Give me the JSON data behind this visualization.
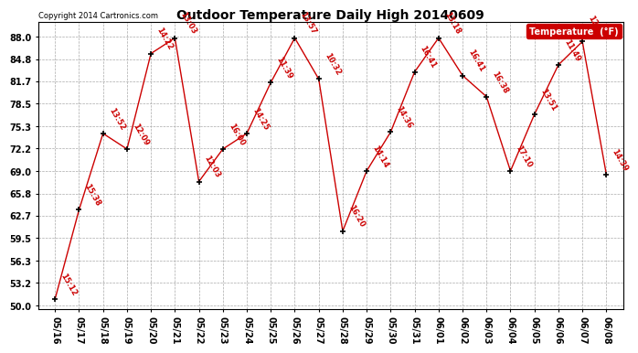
{
  "title": "Outdoor Temperature Daily High 20140609",
  "copyright": "Copyright 2014 Cartronics.com",
  "legend_label": "Temperature  (°F)",
  "background_color": "#ffffff",
  "plot_bg_color": "#ffffff",
  "line_color": "#cc0000",
  "marker_color": "#000000",
  "label_color": "#cc0000",
  "yticks": [
    50.0,
    53.2,
    56.3,
    59.5,
    62.7,
    65.8,
    69.0,
    72.2,
    75.3,
    78.5,
    81.7,
    84.8,
    88.0
  ],
  "ylim": [
    49.5,
    90.0
  ],
  "dates": [
    "05/16",
    "05/17",
    "05/18",
    "05/19",
    "05/20",
    "05/21",
    "05/22",
    "05/23",
    "05/24",
    "05/25",
    "05/26",
    "05/27",
    "05/28",
    "05/29",
    "05/30",
    "05/31",
    "06/01",
    "06/02",
    "06/03",
    "06/04",
    "06/05",
    "06/06",
    "06/07",
    "06/08"
  ],
  "temps": [
    50.9,
    63.5,
    74.3,
    72.1,
    85.6,
    87.8,
    67.5,
    72.1,
    74.3,
    81.5,
    87.8,
    82.0,
    60.5,
    69.0,
    74.5,
    83.0,
    87.8,
    82.5,
    79.5,
    69.0,
    77.0,
    84.0,
    87.3,
    68.5
  ],
  "time_labels": [
    "15:12",
    "15:38",
    "13:52",
    "12:09",
    "14:22",
    "13:03",
    "12:03",
    "16:00",
    "14:25",
    "11:39",
    "13:57",
    "10:32",
    "16:20",
    "14:14",
    "14:36",
    "16:41",
    "13:18",
    "16:41",
    "16:38",
    "17:10",
    "13:51",
    "11:49",
    "12:41",
    "14:39"
  ],
  "title_fontsize": 10,
  "tick_fontsize": 7,
  "label_fontsize": 6,
  "copyright_fontsize": 6
}
